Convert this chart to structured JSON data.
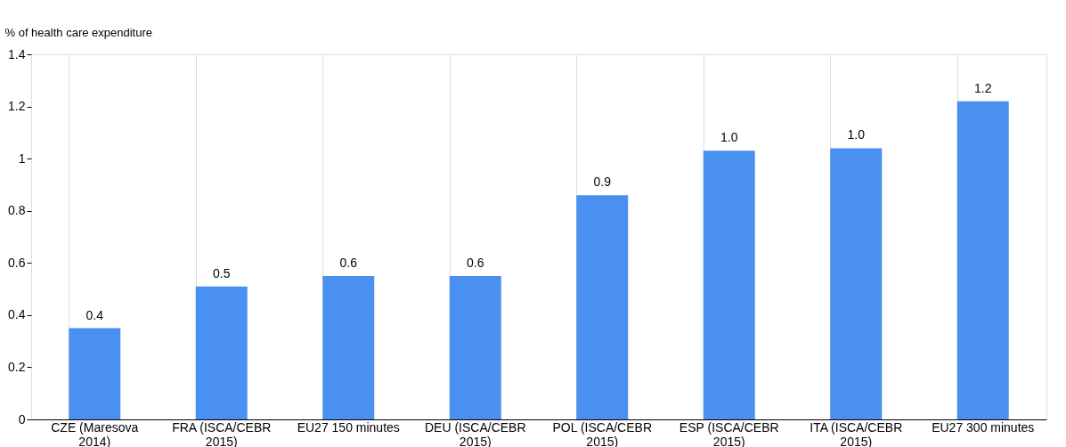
{
  "chart_data": {
    "type": "bar",
    "ylabel": "% of health care expenditure",
    "categories": [
      "CZE (Maresova 2014)",
      "FRA (ISCA/CEBR 2015)",
      "EU27 150 minutes",
      "DEU (ISCA/CEBR 2015)",
      "POL (ISCA/CEBR 2015)",
      "ESP (ISCA/CEBR 2015)",
      "ITA (ISCA/CEBR 2015)",
      "EU27 300 minutes"
    ],
    "values": [
      0.35,
      0.51,
      0.55,
      0.55,
      0.86,
      1.03,
      1.04,
      1.22
    ],
    "value_labels": [
      "0.4",
      "0.5",
      "0.6",
      "0.6",
      "0.9",
      "1.0",
      "1.0",
      "1.2"
    ],
    "color": "#4a90f0",
    "ylim": [
      0,
      1.4
    ],
    "yticks": [
      0,
      0.2,
      0.4,
      0.6,
      0.8,
      1,
      1.2,
      1.4
    ],
    "grid": "x"
  }
}
